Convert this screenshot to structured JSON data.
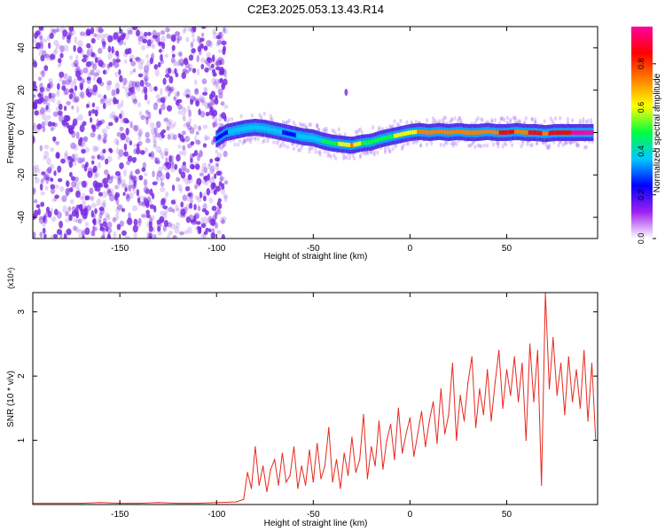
{
  "figure": {
    "title": "C2E3.2025.053.13.43.R14"
  },
  "colors": {
    "snr_line": "#e8281e",
    "spectrum_noise": "#7a2be0",
    "axis": "#000000"
  },
  "colorbar": {
    "label": "Normalized spectral amplitude",
    "ticks": [
      "0.0",
      "0.2",
      "0.4",
      "0.6",
      "0.8"
    ],
    "stops": [
      "#ffffff",
      "#a020f0",
      "#0000ff",
      "#00c8ff",
      "#00ff40",
      "#ffff00",
      "#ff8000",
      "#ff0000",
      "#ff00a0"
    ]
  },
  "chart_data": [
    {
      "type": "heatmap",
      "title": "C2E3.2025.053.13.43.R14",
      "xlabel": "Height of straight line (km)",
      "ylabel": "Frequency (Hz)",
      "xlim": [
        -195,
        97
      ],
      "ylim": [
        -50,
        50
      ],
      "xticks": [
        -150,
        -100,
        -50,
        0,
        50
      ],
      "yticks": [
        -40,
        -20,
        0,
        20,
        40
      ],
      "noise_region_x": [
        -195,
        -95
      ],
      "ridge": {
        "x": [
          -100,
          -95,
          -90,
          -85,
          -80,
          -75,
          -70,
          -65,
          -60,
          -55,
          -50,
          -45,
          -40,
          -35,
          -30,
          -25,
          -20,
          -15,
          -10,
          -5,
          0,
          5,
          10,
          15,
          20,
          25,
          30,
          35,
          40,
          45,
          50,
          55,
          60,
          65,
          70,
          75,
          80,
          85,
          90,
          95
        ],
        "freq": [
          -3,
          0,
          1,
          2,
          2.5,
          2,
          1,
          0,
          -1,
          -2,
          -2.5,
          -4,
          -5,
          -5.5,
          -6,
          -5,
          -4.5,
          -3,
          -2,
          -1,
          0,
          0.5,
          0,
          0.5,
          0,
          0.5,
          0,
          0,
          0.5,
          0,
          0,
          0.5,
          0,
          0,
          -0.5,
          0,
          0,
          0,
          0,
          0
        ],
        "amplitude": [
          0.25,
          0.3,
          0.35,
          0.35,
          0.4,
          0.35,
          0.35,
          0.3,
          0.3,
          0.35,
          0.4,
          0.45,
          0.5,
          0.6,
          0.7,
          0.55,
          0.5,
          0.5,
          0.55,
          0.6,
          0.65,
          0.7,
          0.7,
          0.75,
          0.7,
          0.8,
          0.8,
          0.8,
          0.75,
          0.8,
          0.85,
          0.8,
          0.8,
          0.85,
          0.8,
          0.85,
          0.9,
          0.95,
          0.95,
          0.95
        ]
      },
      "artifact": {
        "x": -33,
        "freq": 19
      }
    },
    {
      "type": "line",
      "xlabel": "Height of straight line (km)",
      "ylabel": "SNR (10 * v/v)",
      "y_multiplier": "(x10⁴)",
      "xlim": [
        -195,
        97
      ],
      "ylim": [
        0,
        3.3
      ],
      "xticks": [
        -150,
        -100,
        -50,
        0,
        50
      ],
      "yticks": [
        1,
        2,
        3
      ],
      "series": [
        {
          "x": [
            -195,
            -190,
            -180,
            -170,
            -160,
            -150,
            -140,
            -130,
            -120,
            -110,
            -100,
            -90,
            -86,
            -84,
            -82,
            -80,
            -78,
            -76,
            -74,
            -72,
            -70,
            -68,
            -66,
            -64,
            -62,
            -60,
            -58,
            -56,
            -54,
            -52,
            -50,
            -48,
            -46,
            -44,
            -42,
            -40,
            -38,
            -36,
            -34,
            -32,
            -30,
            -28,
            -26,
            -24,
            -22,
            -20,
            -18,
            -16,
            -14,
            -12,
            -10,
            -8,
            -6,
            -4,
            -2,
            0,
            2,
            4,
            6,
            8,
            10,
            12,
            14,
            16,
            18,
            20,
            22,
            24,
            26,
            28,
            30,
            32,
            34,
            36,
            38,
            40,
            42,
            44,
            46,
            48,
            50,
            52,
            54,
            56,
            58,
            60,
            62,
            64,
            66,
            68,
            70,
            72,
            74,
            76,
            78,
            80,
            82,
            84,
            86,
            88,
            90,
            92,
            94,
            96
          ],
          "y": [
            0.02,
            0.02,
            0.02,
            0.02,
            0.03,
            0.02,
            0.02,
            0.03,
            0.02,
            0.02,
            0.03,
            0.04,
            0.08,
            0.5,
            0.25,
            0.9,
            0.3,
            0.6,
            0.2,
            0.55,
            0.7,
            0.3,
            0.8,
            0.35,
            0.45,
            0.9,
            0.25,
            0.6,
            0.3,
            0.85,
            0.35,
            0.95,
            0.4,
            0.6,
            1.2,
            0.35,
            0.7,
            0.25,
            0.8,
            0.45,
            1.05,
            0.5,
            0.7,
            1.4,
            0.4,
            0.9,
            0.6,
            1.3,
            0.55,
            1.0,
            1.25,
            0.7,
            1.5,
            0.8,
            1.1,
            1.35,
            0.75,
            1.1,
            1.45,
            0.9,
            1.3,
            1.6,
            0.95,
            1.8,
            1.1,
            1.4,
            2.2,
            1.0,
            1.7,
            1.3,
            1.9,
            2.3,
            1.2,
            1.8,
            1.4,
            2.1,
            1.3,
            1.9,
            2.4,
            1.5,
            2.1,
            1.7,
            2.3,
            1.6,
            2.2,
            1.0,
            2.5,
            1.6,
            2.4,
            0.3,
            3.3,
            1.8,
            2.6,
            1.7,
            2.2,
            1.4,
            2.3,
            1.6,
            2.1,
            1.5,
            2.4,
            1.3,
            2.2,
            1.0
          ]
        }
      ]
    }
  ]
}
